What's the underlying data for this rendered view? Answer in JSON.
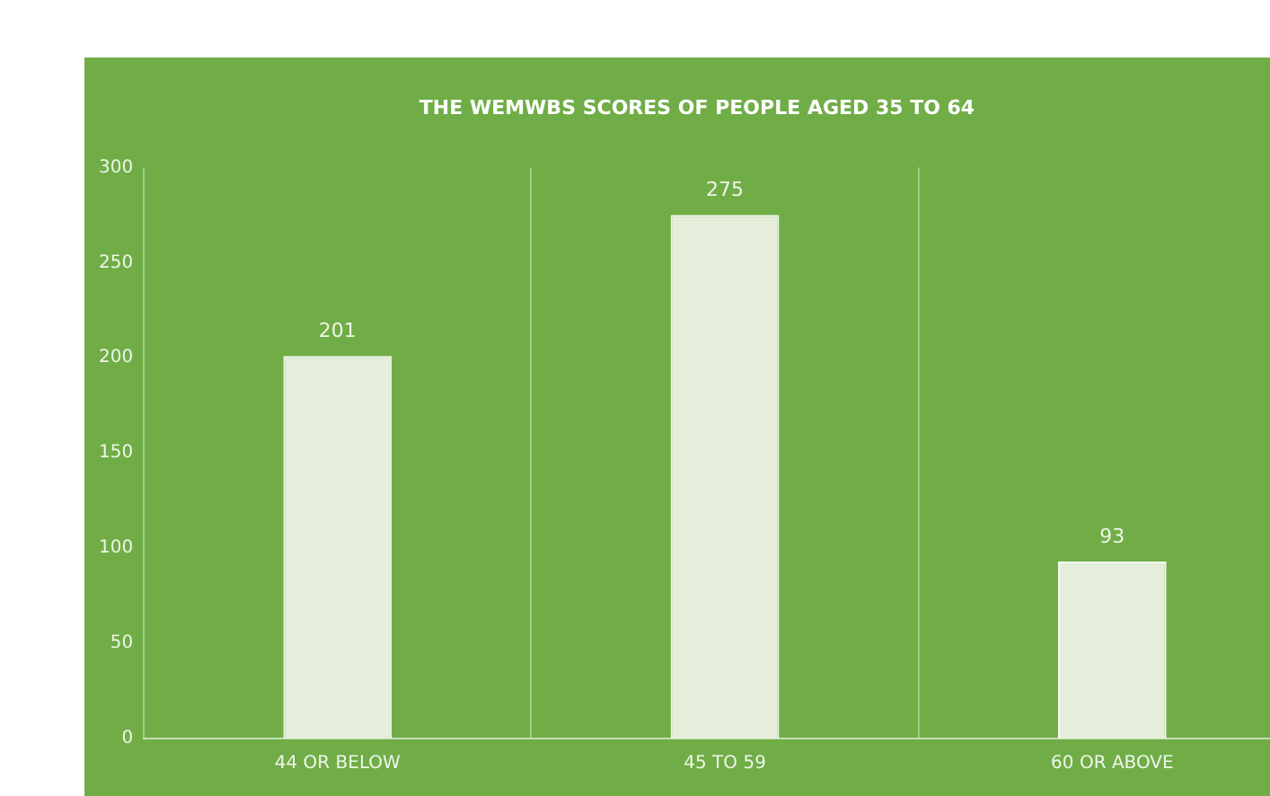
{
  "chart_data": {
    "type": "bar",
    "title": "THE WEMWBS SCORES OF PEOPLE AGED 35 TO 64",
    "categories": [
      "44 OR BELOW",
      "45 TO 59",
      "60 OR ABOVE"
    ],
    "values": [
      201,
      275,
      93
    ],
    "color": "#e4eedb",
    "ylim": [
      0,
      300
    ],
    "yticks": [
      0,
      50,
      100,
      150,
      200,
      250,
      300
    ],
    "grid": "x",
    "data_labels": true,
    "legend": false
  }
}
